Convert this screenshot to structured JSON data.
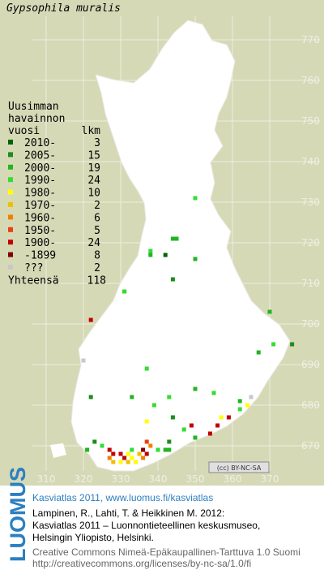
{
  "title": "Gypsophila muralis",
  "legend": {
    "heading": [
      "Uusimman",
      "havainnon"
    ],
    "col_year": "vuosi",
    "col_count": "lkm",
    "rows": [
      {
        "label": "2010-",
        "count": 3,
        "color": "#006400"
      },
      {
        "label": "2005-",
        "count": 15,
        "color": "#1c8c1c"
      },
      {
        "label": "2000-",
        "count": 19,
        "color": "#22b422"
      },
      {
        "label": "1990-",
        "count": 24,
        "color": "#33dd33"
      },
      {
        "label": "1980-",
        "count": 10,
        "color": "#ffff00"
      },
      {
        "label": "1970-",
        "count": 2,
        "color": "#f0c000"
      },
      {
        "label": "1960-",
        "count": 6,
        "color": "#f08000"
      },
      {
        "label": "1950-",
        "count": 5,
        "color": "#e84010"
      },
      {
        "label": "1900-",
        "count": 24,
        "color": "#c00000"
      },
      {
        "label": "-1899",
        "count": 8,
        "color": "#800000"
      },
      {
        "label": "???",
        "count": 2,
        "color": "#c8c8c8"
      }
    ],
    "total_label": "Yhteensä",
    "total": 118
  },
  "xlim": [
    310,
    370
  ],
  "xticks": [
    310,
    320,
    330,
    340,
    350,
    360,
    370
  ],
  "ylim": [
    670,
    770
  ],
  "yticks": [
    670,
    680,
    690,
    700,
    710,
    720,
    730,
    740,
    750,
    760,
    770
  ],
  "records": [
    [
      350,
      731,
      3
    ],
    [
      344,
      721,
      2
    ],
    [
      345,
      721,
      2
    ],
    [
      338,
      718,
      3
    ],
    [
      338,
      717,
      2
    ],
    [
      342,
      717,
      0
    ],
    [
      350,
      716,
      2
    ],
    [
      344,
      711,
      1
    ],
    [
      331,
      708,
      8
    ],
    [
      331,
      708,
      3
    ],
    [
      370,
      703,
      2
    ],
    [
      322,
      701,
      8
    ],
    [
      376,
      695,
      1
    ],
    [
      367,
      693,
      2
    ],
    [
      371,
      695,
      3
    ],
    [
      320,
      691,
      10
    ],
    [
      337,
      689,
      3
    ],
    [
      322,
      682,
      1
    ],
    [
      333,
      682,
      2
    ],
    [
      343,
      682,
      3
    ],
    [
      350,
      684,
      2
    ],
    [
      355,
      683,
      3
    ],
    [
      365,
      682,
      10
    ],
    [
      364,
      680,
      4
    ],
    [
      362,
      681,
      2
    ],
    [
      337,
      676,
      4
    ],
    [
      339,
      680,
      3
    ],
    [
      344,
      677,
      1
    ],
    [
      347,
      674,
      3
    ],
    [
      350,
      672,
      2
    ],
    [
      349,
      675,
      8
    ],
    [
      354,
      673,
      8
    ],
    [
      356,
      675,
      8
    ],
    [
      357,
      677,
      4
    ],
    [
      359,
      677,
      8
    ],
    [
      362,
      679,
      3
    ],
    [
      323,
      671,
      1
    ],
    [
      325,
      670,
      3
    ],
    [
      321,
      669,
      2
    ],
    [
      327,
      669,
      8
    ],
    [
      328,
      668,
      8
    ],
    [
      330,
      668,
      8
    ],
    [
      331,
      667,
      8
    ],
    [
      332,
      668,
      4
    ],
    [
      333,
      667,
      4
    ],
    [
      333,
      669,
      3
    ],
    [
      335,
      668,
      5
    ],
    [
      336,
      669,
      9
    ],
    [
      337,
      668,
      8
    ],
    [
      338,
      670,
      6
    ],
    [
      330,
      666,
      4
    ],
    [
      332,
      666,
      5
    ],
    [
      334,
      666,
      4
    ],
    [
      336,
      667,
      6
    ],
    [
      340,
      669,
      3
    ],
    [
      342,
      669,
      2
    ],
    [
      343,
      671,
      1
    ],
    [
      337,
      671,
      7
    ],
    [
      328,
      666,
      5
    ],
    [
      327,
      667,
      6
    ],
    [
      343,
      669,
      2
    ]
  ],
  "license_badge": "(cc) BY-NC-SA",
  "footer": {
    "brand": "LUOMUS",
    "link": "Kasviatlas 2011, www.luomus.fi/kasviatlas",
    "citation": [
      "Lampinen, R., Lahti, T. & Heikkinen M. 2012:",
      "Kasviatlas 2011 – Luonnontieteellinen keskusmuseo,",
      "Helsingin Yliopisto, Helsinki."
    ],
    "license": [
      "Creative Commons Nimeä-Epäkaupallinen-Tarttuva 1.0 Suomi",
      "http://creativecommons.org/licenses/by-nc-sa/1.0/fi"
    ]
  }
}
